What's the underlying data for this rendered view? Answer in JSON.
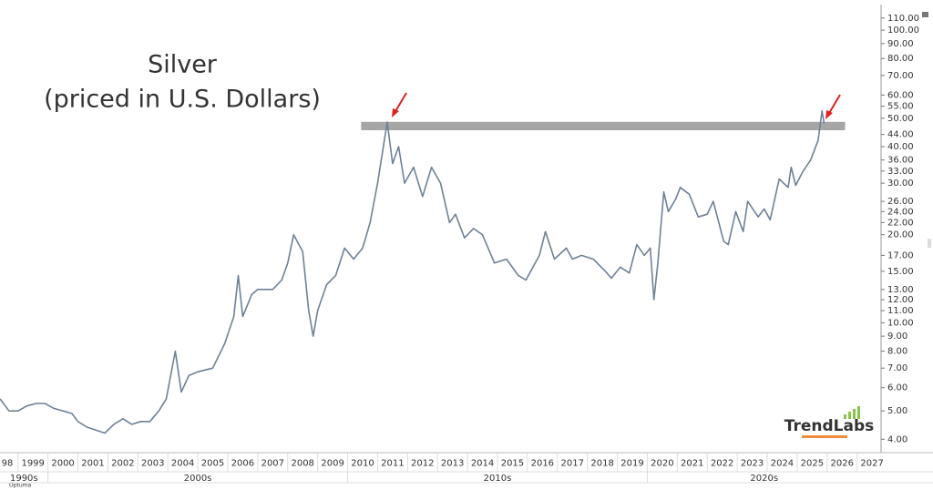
{
  "chart_data": {
    "type": "line",
    "title": "Silver",
    "subtitle": "(priced in U.S. Dollars)",
    "logo": "TrendLabs",
    "footer": "Optuma",
    "color": "#6f8196",
    "log_scale": true,
    "grid": false,
    "x": [
      1998.4,
      1998.7,
      1999.0,
      1999.3,
      1999.6,
      1999.9,
      2000.2,
      2000.5,
      2000.8,
      2001.0,
      2001.3,
      2001.6,
      2001.9,
      2002.2,
      2002.5,
      2002.8,
      2003.1,
      2003.4,
      2003.7,
      2003.95,
      2004.25,
      2004.45,
      2004.7,
      2005.0,
      2005.5,
      2005.9,
      2006.2,
      2006.35,
      2006.5,
      2006.8,
      2007.0,
      2007.5,
      2007.8,
      2008.0,
      2008.2,
      2008.5,
      2008.7,
      2008.85,
      2009.0,
      2009.3,
      2009.6,
      2009.9,
      2010.2,
      2010.5,
      2010.75,
      2011.0,
      2011.32,
      2011.5,
      2011.7,
      2011.9,
      2012.2,
      2012.5,
      2012.8,
      2013.1,
      2013.4,
      2013.6,
      2013.9,
      2014.2,
      2014.5,
      2014.9,
      2015.3,
      2015.7,
      2015.95,
      2016.4,
      2016.6,
      2016.9,
      2017.3,
      2017.5,
      2017.8,
      2018.2,
      2018.6,
      2018.8,
      2019.1,
      2019.4,
      2019.65,
      2019.9,
      2020.1,
      2020.22,
      2020.35,
      2020.55,
      2020.7,
      2020.95,
      2021.1,
      2021.4,
      2021.7,
      2022.0,
      2022.2,
      2022.55,
      2022.7,
      2022.95,
      2023.2,
      2023.35,
      2023.7,
      2023.9,
      2024.1,
      2024.4,
      2024.7,
      2024.8,
      2024.95,
      2025.2,
      2025.45,
      2025.7,
      2025.83,
      2025.9
    ],
    "values": [
      5.5,
      5.0,
      5.0,
      5.2,
      5.3,
      5.3,
      5.1,
      5.0,
      4.9,
      4.6,
      4.4,
      4.3,
      4.2,
      4.5,
      4.7,
      4.5,
      4.6,
      4.6,
      5.0,
      5.5,
      8.0,
      5.8,
      6.6,
      6.8,
      7.0,
      8.5,
      10.5,
      14.5,
      10.5,
      12.5,
      13.0,
      13.0,
      14.0,
      16.0,
      20.0,
      17.5,
      11.0,
      9.0,
      11.0,
      13.5,
      14.5,
      18.0,
      16.5,
      18.0,
      22.0,
      30.0,
      48.5,
      35.0,
      40.0,
      30.0,
      34.0,
      27.0,
      34.0,
      30.0,
      22.0,
      23.5,
      19.5,
      21.0,
      20.0,
      16.0,
      16.5,
      14.5,
      14.0,
      17.0,
      20.5,
      16.5,
      18.0,
      16.5,
      17.0,
      16.5,
      15.0,
      14.2,
      15.5,
      14.8,
      18.5,
      17.0,
      18.0,
      12.0,
      16.0,
      28.0,
      24.0,
      26.5,
      29.0,
      27.5,
      23.0,
      23.5,
      26.0,
      19.0,
      18.5,
      24.0,
      20.5,
      26.0,
      23.0,
      24.5,
      22.5,
      31.0,
      29.0,
      34.0,
      29.5,
      33.0,
      36.0,
      42.0,
      53.0,
      48.0
    ],
    "band": {
      "x": [
        2010.45,
        2026.6
      ],
      "y": [
        45.5,
        48.6
      ],
      "color": "#a6a6a6"
    },
    "xlim": [
      1998.4,
      2027.8
    ],
    "ylim": [
      3.6,
      118
    ],
    "xticks": [
      {
        "value": 1998,
        "label": "98"
      },
      1999,
      2000,
      2001,
      2002,
      2003,
      2004,
      2005,
      2006,
      2007,
      2008,
      2009,
      2010,
      2011,
      2012,
      2013,
      2014,
      2015,
      2016,
      2017,
      2018,
      2019,
      2020,
      2021,
      2022,
      2023,
      2024,
      2025,
      2026,
      2027
    ],
    "decades": [
      {
        "value": 1990,
        "label": "1990s"
      },
      {
        "value": 2000,
        "label": "2000s"
      },
      {
        "value": 2010,
        "label": "2010s"
      },
      {
        "value": 2020,
        "label": "2020s"
      }
    ],
    "yticks": [
      {
        "value": 4,
        "label": "4.00"
      },
      {
        "value": 5,
        "label": "5.00"
      },
      {
        "value": 6,
        "label": "6.00"
      },
      {
        "value": 7,
        "label": "7.00"
      },
      {
        "value": 8,
        "label": "8.00"
      },
      {
        "value": 9,
        "label": "9.00"
      },
      {
        "value": 10,
        "label": "10.00"
      },
      {
        "value": 11,
        "label": "11.00"
      },
      {
        "value": 12,
        "label": "12.00"
      },
      {
        "value": 13,
        "label": "13.00"
      },
      {
        "value": 15,
        "label": "15.00"
      },
      {
        "value": 17,
        "label": "17.00"
      },
      {
        "value": 20,
        "label": "20.00"
      },
      {
        "value": 22,
        "label": "22.00"
      },
      {
        "value": 24,
        "label": "24.00"
      },
      {
        "value": 26,
        "label": "26.00"
      },
      {
        "value": 30,
        "label": "30.00"
      },
      {
        "value": 33,
        "label": "33.00"
      },
      {
        "value": 36,
        "label": "36.00"
      },
      {
        "value": 40,
        "label": "40.00"
      },
      {
        "value": 44,
        "label": "44.00"
      },
      {
        "value": 50,
        "label": "50.00"
      },
      {
        "value": 55,
        "label": "55.00"
      },
      {
        "value": 60,
        "label": "60.00"
      },
      {
        "value": 70,
        "label": "70.00"
      },
      {
        "value": 80,
        "label": "80.00"
      },
      {
        "value": 90,
        "label": "90.00"
      },
      {
        "value": 100,
        "label": "100.00"
      },
      {
        "value": 110,
        "label": "110.00"
      }
    ]
  }
}
